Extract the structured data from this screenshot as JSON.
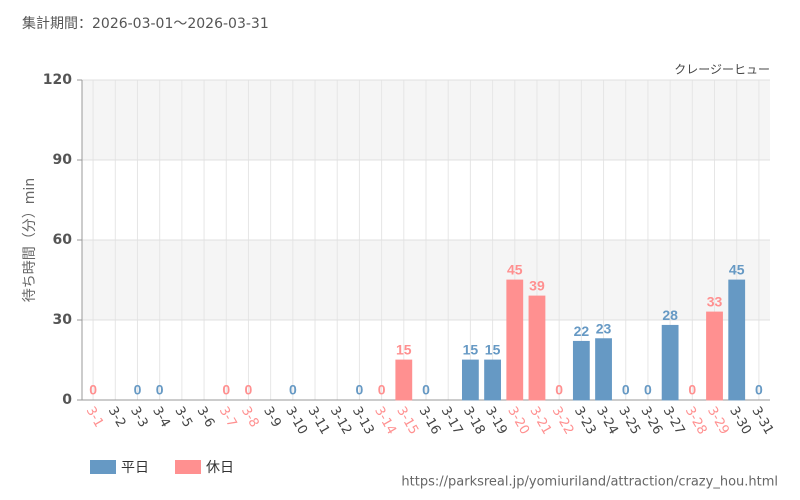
{
  "chart_data": {
    "type": "bar",
    "title": "集計期間：2026-03-01～2026-03-31",
    "subtitle": "クレージーヒュー",
    "y_label": "待ち時間（分）min",
    "source": "https://parksreal.jp/yomiuriland/attraction/crazy_hou.html",
    "categories": [
      "3-1",
      "3-2",
      "3-3",
      "3-4",
      "3-5",
      "3-6",
      "3-7",
      "3-8",
      "3-9",
      "3-10",
      "3-11",
      "3-12",
      "3-13",
      "3-14",
      "3-15",
      "3-16",
      "3-17",
      "3-18",
      "3-19",
      "3-20",
      "3-21",
      "3-22",
      "3-23",
      "3-24",
      "3-25",
      "3-26",
      "3-27",
      "3-28",
      "3-29",
      "3-30",
      "3-31"
    ],
    "series": [
      {
        "name": "平日",
        "color": "#6699c4",
        "values": [
          null,
          null,
          0,
          0,
          null,
          null,
          null,
          null,
          null,
          0,
          null,
          null,
          0,
          null,
          null,
          0,
          null,
          15,
          15,
          null,
          null,
          null,
          22,
          23,
          0,
          0,
          28,
          null,
          null,
          45,
          0
        ]
      },
      {
        "name": "休日",
        "color": "#ff9090",
        "values": [
          0,
          null,
          null,
          null,
          null,
          null,
          0,
          0,
          null,
          null,
          null,
          null,
          null,
          0,
          15,
          null,
          null,
          null,
          null,
          45,
          39,
          0,
          null,
          null,
          null,
          null,
          null,
          0,
          33,
          null,
          null
        ]
      }
    ],
    "ylim": [
      0,
      120
    ],
    "yticks": [
      0,
      30,
      60,
      90,
      120
    ],
    "grid": true,
    "legend": "bottom-left"
  }
}
